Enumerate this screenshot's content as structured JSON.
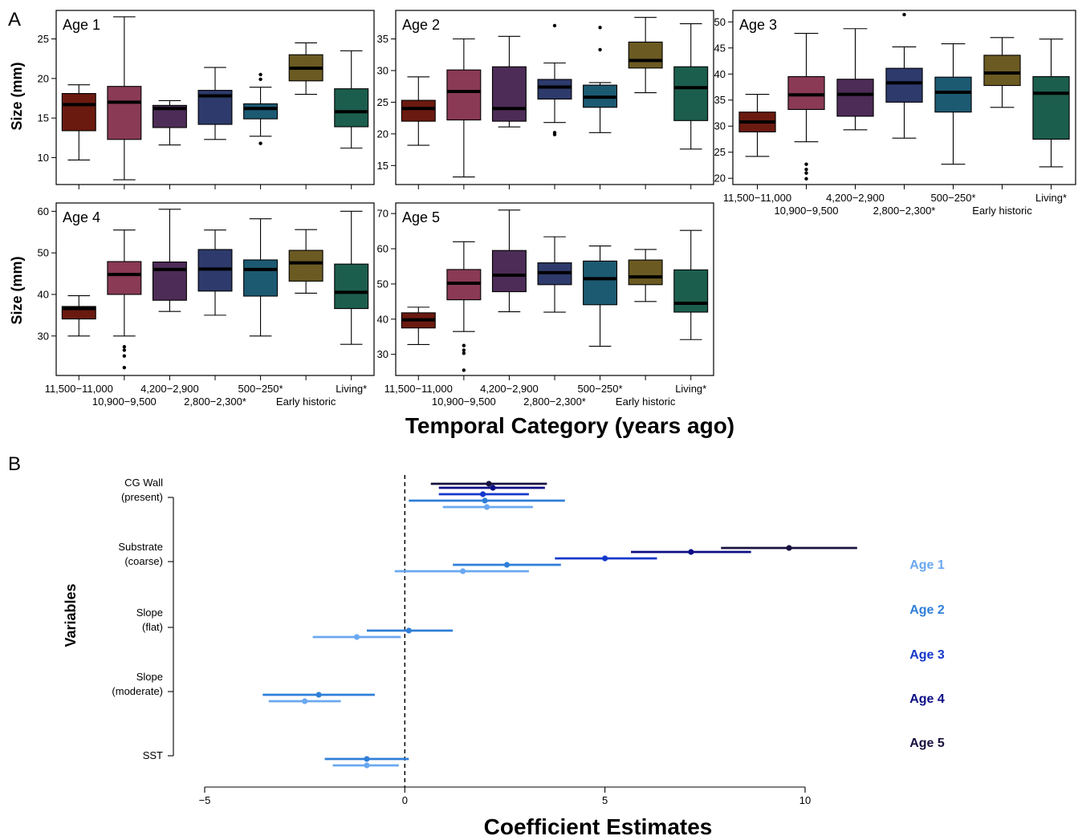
{
  "figure": {
    "panel_letters": [
      "A",
      "B"
    ],
    "a_ylabel": "Size (mm)",
    "a_xlabel": "Temporal Category (years ago)",
    "b_ylabel": "Variables",
    "b_xlabel": "Coefficient Estimates"
  },
  "chart_data": [
    {
      "type": "boxplot",
      "title": "Age 1",
      "ylabel": "Size (mm)",
      "categories": [
        "11,500−11,000",
        "10,900−9,500",
        "4,200−2,900",
        "2,800−2,300*",
        "500−250*",
        "Early historic",
        "Living*"
      ],
      "colors": [
        "#6b1a10",
        "#8a3a55",
        "#4d2c57",
        "#2d3a6b",
        "#1c5a72",
        "#6b5a22",
        "#1c5e4e"
      ],
      "ylim": [
        6.6,
        28.6
      ],
      "yticks": [
        10,
        15,
        20,
        25
      ],
      "boxes": [
        {
          "whislo": 9.7,
          "q1": 13.4,
          "med": 16.7,
          "q3": 18.1,
          "whishi": 19.2,
          "fliers": []
        },
        {
          "whislo": 7.2,
          "q1": 12.3,
          "med": 17.0,
          "q3": 19.0,
          "whishi": 27.8,
          "fliers": []
        },
        {
          "whislo": 11.6,
          "q1": 13.8,
          "med": 16.2,
          "q3": 16.6,
          "whishi": 17.2,
          "fliers": []
        },
        {
          "whislo": 12.3,
          "q1": 14.2,
          "med": 17.8,
          "q3": 18.5,
          "whishi": 21.4,
          "fliers": []
        },
        {
          "whislo": 12.7,
          "q1": 14.9,
          "med": 16.2,
          "q3": 16.8,
          "whishi": 18.9,
          "fliers": [
            11.8,
            19.9,
            20.5
          ]
        },
        {
          "whislo": 18.0,
          "q1": 19.7,
          "med": 21.3,
          "q3": 23.0,
          "whishi": 24.5,
          "fliers": []
        },
        {
          "whislo": 11.2,
          "q1": 13.9,
          "med": 15.8,
          "q3": 18.7,
          "whishi": 23.5,
          "fliers": []
        }
      ]
    },
    {
      "type": "boxplot",
      "title": "Age 2",
      "categories": [
        "11,500−11,000",
        "10,900−9,500",
        "4,200−2,900",
        "2,800−2,300*",
        "500−250*",
        "Early historic",
        "Living*"
      ],
      "colors": [
        "#6b1a10",
        "#8a3a55",
        "#4d2c57",
        "#2d3a6b",
        "#1c5a72",
        "#6b5a22",
        "#1c5e4e"
      ],
      "ylim": [
        12,
        39.5
      ],
      "yticks": [
        15,
        20,
        25,
        30,
        35
      ],
      "boxes": [
        {
          "whislo": 18.2,
          "q1": 22.0,
          "med": 24.0,
          "q3": 25.3,
          "whishi": 29.0,
          "fliers": []
        },
        {
          "whislo": 13.2,
          "q1": 22.2,
          "med": 26.7,
          "q3": 30.1,
          "whishi": 35.0,
          "fliers": []
        },
        {
          "whislo": 21.1,
          "q1": 22.0,
          "med": 24.0,
          "q3": 30.6,
          "whishi": 35.4,
          "fliers": []
        },
        {
          "whislo": 21.8,
          "q1": 25.5,
          "med": 27.4,
          "q3": 28.6,
          "whishi": 31.2,
          "fliers": [
            19.9,
            20.2,
            37.1
          ]
        },
        {
          "whislo": 20.2,
          "q1": 24.2,
          "med": 25.8,
          "q3": 27.7,
          "whishi": 28.1,
          "fliers": [
            33.3,
            36.8
          ]
        },
        {
          "whislo": 26.5,
          "q1": 30.4,
          "med": 31.6,
          "q3": 34.5,
          "whishi": 38.4,
          "fliers": []
        },
        {
          "whislo": 17.6,
          "q1": 22.1,
          "med": 27.3,
          "q3": 30.6,
          "whishi": 37.4,
          "fliers": []
        }
      ]
    },
    {
      "type": "boxplot",
      "title": "Age 3",
      "categories": [
        "11,500−11,000",
        "10,900−9,500",
        "4,200−2,900",
        "2,800−2,300*",
        "500−250*",
        "Early historic",
        "Living*"
      ],
      "colors": [
        "#6b1a10",
        "#8a3a55",
        "#4d2c57",
        "#2d3a6b",
        "#1c5a72",
        "#6b5a22",
        "#1c5e4e"
      ],
      "ylim": [
        18.8,
        52.2
      ],
      "yticks": [
        20,
        25,
        30,
        35,
        40,
        45,
        50
      ],
      "boxes": [
        {
          "whislo": 24.2,
          "q1": 28.9,
          "med": 30.8,
          "q3": 32.7,
          "whishi": 36.1,
          "fliers": []
        },
        {
          "whislo": 27.0,
          "q1": 33.2,
          "med": 36.0,
          "q3": 39.5,
          "whishi": 47.8,
          "fliers": [
            19.9,
            21.0,
            21.7,
            22.7
          ]
        },
        {
          "whislo": 29.3,
          "q1": 31.9,
          "med": 36.1,
          "q3": 39.0,
          "whishi": 48.7,
          "fliers": []
        },
        {
          "whislo": 27.7,
          "q1": 34.6,
          "med": 38.3,
          "q3": 41.1,
          "whishi": 45.2,
          "fliers": [
            51.4
          ]
        },
        {
          "whislo": 22.7,
          "q1": 32.7,
          "med": 36.5,
          "q3": 39.4,
          "whishi": 45.8,
          "fliers": []
        },
        {
          "whislo": 33.6,
          "q1": 37.8,
          "med": 40.2,
          "q3": 43.6,
          "whishi": 47.0,
          "fliers": []
        },
        {
          "whislo": 22.2,
          "q1": 27.5,
          "med": 36.3,
          "q3": 39.5,
          "whishi": 46.7,
          "fliers": []
        }
      ]
    },
    {
      "type": "boxplot",
      "title": "Age 4",
      "ylabel": "Size (mm)",
      "categories": [
        "11,500−11,000",
        "10,900−9,500",
        "4,200−2,900",
        "2,800−2,300*",
        "500−250*",
        "Early historic",
        "Living*"
      ],
      "colors": [
        "#6b1a10",
        "#8a3a55",
        "#4d2c57",
        "#2d3a6b",
        "#1c5a72",
        "#6b5a22",
        "#1c5e4e"
      ],
      "ylim": [
        20.5,
        62
      ],
      "yticks": [
        30,
        40,
        50,
        60
      ],
      "boxes": [
        {
          "whislo": 30.0,
          "q1": 34.1,
          "med": 36.6,
          "q3": 37.1,
          "whishi": 39.7,
          "fliers": []
        },
        {
          "whislo": 30.0,
          "q1": 40.0,
          "med": 44.8,
          "q3": 47.9,
          "whishi": 55.5,
          "fliers": [
            22.4,
            25.2,
            26.6,
            27.4
          ]
        },
        {
          "whislo": 35.9,
          "q1": 38.6,
          "med": 46.0,
          "q3": 47.8,
          "whishi": 60.5,
          "fliers": []
        },
        {
          "whislo": 35.0,
          "q1": 40.8,
          "med": 46.1,
          "q3": 50.8,
          "whishi": 55.5,
          "fliers": []
        },
        {
          "whislo": 30.0,
          "q1": 39.6,
          "med": 46.0,
          "q3": 48.3,
          "whishi": 58.2,
          "fliers": []
        },
        {
          "whislo": 40.3,
          "q1": 43.2,
          "med": 47.6,
          "q3": 50.6,
          "whishi": 55.6,
          "fliers": []
        },
        {
          "whislo": 28.0,
          "q1": 36.6,
          "med": 40.5,
          "q3": 47.3,
          "whishi": 60.0,
          "fliers": []
        }
      ]
    },
    {
      "type": "boxplot",
      "title": "Age 5",
      "xlabel": "Temporal Category (years ago)",
      "categories": [
        "11,500−11,000",
        "10,900−9,500",
        "4,200−2,900",
        "2,800−2,300*",
        "500−250*",
        "Early historic",
        "Living*"
      ],
      "colors": [
        "#6b1a10",
        "#8a3a55",
        "#4d2c57",
        "#2d3a6b",
        "#1c5a72",
        "#6b5a22",
        "#1c5e4e"
      ],
      "ylim": [
        24,
        73
      ],
      "yticks": [
        30,
        40,
        50,
        60,
        70
      ],
      "boxes": [
        {
          "whislo": 32.8,
          "q1": 37.5,
          "med": 39.8,
          "q3": 41.8,
          "whishi": 43.4,
          "fliers": []
        },
        {
          "whislo": 36.5,
          "q1": 45.5,
          "med": 50.2,
          "q3": 54.1,
          "whishi": 62.0,
          "fliers": [
            25.5,
            30.3,
            31.2,
            32.5
          ]
        },
        {
          "whislo": 42.1,
          "q1": 47.8,
          "med": 52.5,
          "q3": 59.5,
          "whishi": 71.0,
          "fliers": []
        },
        {
          "whislo": 42.0,
          "q1": 49.8,
          "med": 53.2,
          "q3": 56.0,
          "whishi": 63.4,
          "fliers": []
        },
        {
          "whislo": 32.3,
          "q1": 44.1,
          "med": 51.5,
          "q3": 56.5,
          "whishi": 60.8,
          "fliers": []
        },
        {
          "whislo": 45.0,
          "q1": 49.8,
          "med": 52.0,
          "q3": 56.8,
          "whishi": 59.8,
          "fliers": []
        },
        {
          "whislo": 34.2,
          "q1": 42.0,
          "med": 44.5,
          "q3": 54.0,
          "whishi": 65.2,
          "fliers": []
        }
      ]
    },
    {
      "type": "dot_interval",
      "ylabel": "Variables",
      "xlabel": "Coefficient Estimates",
      "xlim": [
        -5,
        11.5
      ],
      "xticks": [
        -5,
        0,
        5,
        10
      ],
      "xticklabels": [
        "−5",
        "0",
        "5",
        "10"
      ],
      "reference_line": 0,
      "variables": [
        "CG Wall\n(present)",
        "Substrate\n(coarse)",
        "Slope\n(flat)",
        "Slope\n(moderate)",
        "SST"
      ],
      "series": [
        {
          "name": "Age 1",
          "color": "#6aa8f0"
        },
        {
          "name": "Age 2",
          "color": "#2f7fd8"
        },
        {
          "name": "Age 3",
          "color": "#1438cc"
        },
        {
          "name": "Age 4",
          "color": "#0c0e85"
        },
        {
          "name": "Age 5",
          "color": "#18123f"
        }
      ],
      "estimates": [
        {
          "variable": "CG Wall\n(present)",
          "age": "Age 5",
          "est": 2.1,
          "lo": 0.65,
          "hi": 3.55
        },
        {
          "variable": "CG Wall\n(present)",
          "age": "Age 4",
          "est": 2.2,
          "lo": 0.85,
          "hi": 3.5
        },
        {
          "variable": "CG Wall\n(present)",
          "age": "Age 3",
          "est": 1.95,
          "lo": 0.85,
          "hi": 3.1
        },
        {
          "variable": "CG Wall\n(present)",
          "age": "Age 2",
          "est": 2.0,
          "lo": 0.1,
          "hi": 4.0
        },
        {
          "variable": "CG Wall\n(present)",
          "age": "Age 1",
          "est": 2.05,
          "lo": 0.95,
          "hi": 3.2
        },
        {
          "variable": "Substrate\n(coarse)",
          "age": "Age 5",
          "est": 9.6,
          "lo": 7.9,
          "hi": 11.3
        },
        {
          "variable": "Substrate\n(coarse)",
          "age": "Age 4",
          "est": 7.15,
          "lo": 5.65,
          "hi": 8.65
        },
        {
          "variable": "Substrate\n(coarse)",
          "age": "Age 3",
          "est": 5.0,
          "lo": 3.75,
          "hi": 6.3
        },
        {
          "variable": "Substrate\n(coarse)",
          "age": "Age 2",
          "est": 2.55,
          "lo": 1.2,
          "hi": 3.9
        },
        {
          "variable": "Substrate\n(coarse)",
          "age": "Age 1",
          "est": 1.45,
          "lo": -0.25,
          "hi": 3.1
        },
        {
          "variable": "Slope\n(flat)",
          "age": "Age 2",
          "est": 0.1,
          "lo": -0.95,
          "hi": 1.2
        },
        {
          "variable": "Slope\n(flat)",
          "age": "Age 1",
          "est": -1.2,
          "lo": -2.3,
          "hi": -0.1
        },
        {
          "variable": "Slope\n(moderate)",
          "age": "Age 2",
          "est": -2.15,
          "lo": -3.55,
          "hi": -0.75
        },
        {
          "variable": "Slope\n(moderate)",
          "age": "Age 1",
          "est": -2.5,
          "lo": -3.4,
          "hi": -1.6
        },
        {
          "variable": "SST",
          "age": "Age 2",
          "est": -0.95,
          "lo": -2.0,
          "hi": 0.1
        },
        {
          "variable": "SST",
          "age": "Age 1",
          "est": -0.95,
          "lo": -1.8,
          "hi": -0.15
        }
      ]
    }
  ]
}
